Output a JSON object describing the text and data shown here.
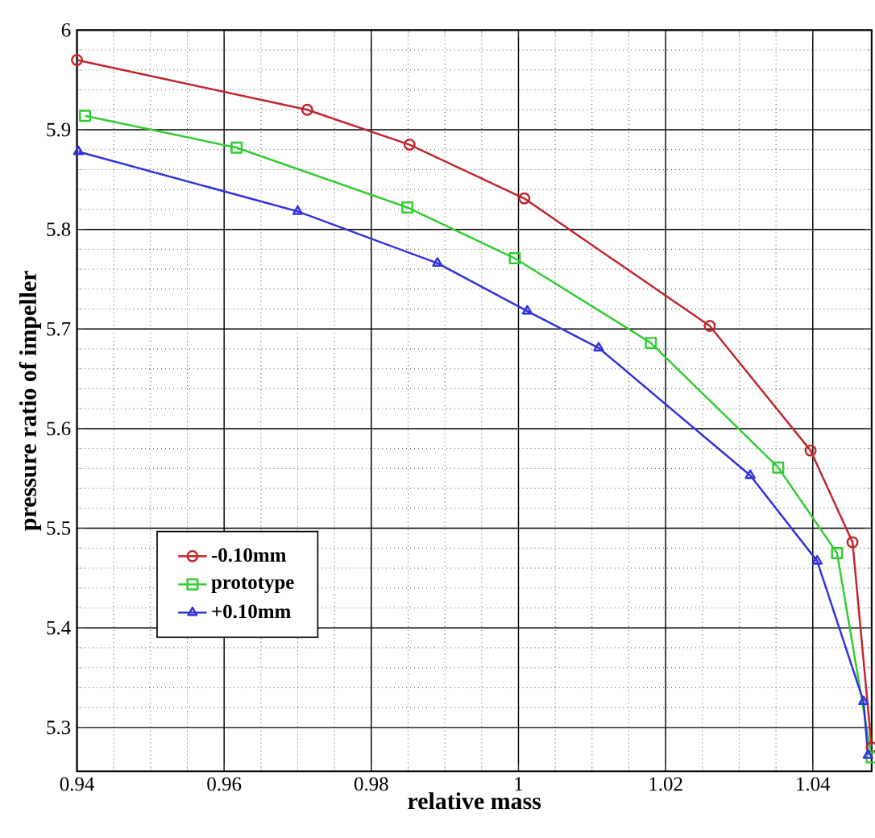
{
  "chart_data": {
    "type": "line",
    "xlabel": "relative mass",
    "ylabel": "pressure ratio of impeller",
    "xlim": [
      0.94,
      1.048
    ],
    "ylim": [
      5.256,
      6
    ],
    "xticks": [
      {
        "value": 0.94,
        "label": "0.94"
      },
      {
        "value": 0.96,
        "label": "0.96"
      },
      {
        "value": 0.98,
        "label": "0.98"
      },
      {
        "value": 1,
        "label": "1"
      },
      {
        "value": 1.02,
        "label": "1.02"
      },
      {
        "value": 1.04,
        "label": "1.04"
      }
    ],
    "yticks": [
      {
        "value": 5.3,
        "label": "5.3"
      },
      {
        "value": 5.4,
        "label": "5.4"
      },
      {
        "value": 5.5,
        "label": "5.5"
      },
      {
        "value": 5.6,
        "label": "5.6"
      },
      {
        "value": 5.7,
        "label": "5.7"
      },
      {
        "value": 5.8,
        "label": "5.8"
      },
      {
        "value": 5.9,
        "label": "5.9"
      },
      {
        "value": 6,
        "label": "6"
      }
    ],
    "grid": true,
    "legend": "bottom left",
    "line_style": "solid",
    "series": [
      {
        "name": "-0.10mm",
        "color": "#c0272d",
        "marker": "circle",
        "x": [
          0.94,
          0.9713,
          0.9852,
          1.0008,
          1.026,
          1.0397,
          1.0454,
          1.048
        ],
        "values": [
          5.97,
          5.92,
          5.885,
          5.831,
          5.703,
          5.578,
          5.486,
          5.28
        ]
      },
      {
        "name": "prototype",
        "color": "#33cc33",
        "marker": "square",
        "x": [
          0.9411,
          0.9617,
          0.9849,
          0.9995,
          1.018,
          1.0353,
          1.0433,
          1.048
        ],
        "values": [
          5.914,
          5.882,
          5.822,
          5.771,
          5.686,
          5.561,
          5.475,
          5.27
        ]
      },
      {
        "name": "+0.10mm",
        "color": "#3333dd",
        "marker": "triangle",
        "x": [
          0.9402,
          0.97,
          0.989,
          1.0012,
          1.0109,
          1.0315,
          1.0406,
          1.0469,
          1.0475
        ],
        "values": [
          5.878,
          5.818,
          5.766,
          5.718,
          5.681,
          5.553,
          5.467,
          5.326,
          5.272
        ]
      }
    ]
  }
}
